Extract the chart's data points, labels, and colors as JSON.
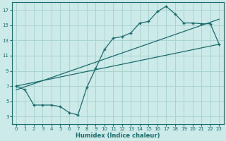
{
  "xlabel": "Humidex (Indice chaleur)",
  "xlim": [
    -0.5,
    23.5
  ],
  "ylim": [
    2,
    18
  ],
  "xticks": [
    0,
    1,
    2,
    3,
    4,
    5,
    6,
    7,
    8,
    9,
    10,
    11,
    12,
    13,
    14,
    15,
    16,
    17,
    18,
    19,
    20,
    21,
    22,
    23
  ],
  "yticks": [
    3,
    5,
    7,
    9,
    11,
    13,
    15,
    17
  ],
  "bg_color": "#cceae8",
  "grid_color": "#aad4d0",
  "line_color": "#1a6b6b",
  "curve1_x": [
    0,
    1,
    2,
    3,
    4,
    5,
    6,
    7,
    8,
    9,
    10,
    11,
    12,
    13,
    14,
    15,
    16,
    17,
    18,
    19,
    20,
    21,
    22,
    23
  ],
  "curve1_y": [
    7.0,
    6.5,
    4.5,
    4.5,
    4.5,
    4.3,
    3.5,
    3.2,
    6.8,
    9.3,
    11.8,
    13.3,
    13.5,
    14.0,
    15.3,
    15.5,
    16.8,
    17.5,
    16.5,
    15.3,
    15.3,
    15.2,
    15.2,
    12.5
  ],
  "line2_x": [
    0,
    23
  ],
  "line2_y": [
    7.0,
    12.5
  ],
  "line3_x": [
    0,
    23
  ],
  "line3_y": [
    6.5,
    15.8
  ]
}
